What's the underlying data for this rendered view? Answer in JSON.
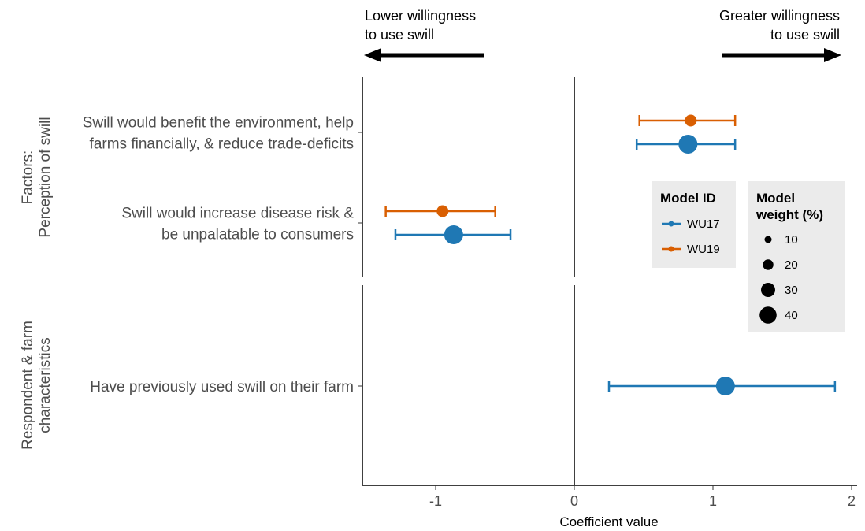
{
  "chart_data": {
    "type": "forest",
    "xlabel": "Coefficient value",
    "xlim": [
      -1.52,
      2.03
    ],
    "xticks": [
      -1,
      0,
      1,
      2
    ],
    "reference_line": 0,
    "annotations": {
      "left": [
        "Lower willingness",
        "to use swill"
      ],
      "right": [
        "Greater willingness",
        "to use swill"
      ]
    },
    "panels": [
      {
        "strip_label": [
          "Factors:",
          "Perception of swill"
        ],
        "rows": [
          {
            "label": [
              "Swill would benefit the environment, help",
              "farms financially, & reduce trade-deficits"
            ],
            "estimates": [
              {
                "model": "WU19",
                "value": 0.84,
                "low": 0.47,
                "high": 1.16,
                "weight": 20
              },
              {
                "model": "WU17",
                "value": 0.82,
                "low": 0.45,
                "high": 1.16,
                "weight": 40
              }
            ]
          },
          {
            "label": [
              "Swill would increase disease risk &",
              "be unpalatable to consumers"
            ],
            "estimates": [
              {
                "model": "WU19",
                "value": -0.95,
                "low": -1.36,
                "high": -0.57,
                "weight": 20
              },
              {
                "model": "WU17",
                "value": -0.87,
                "low": -1.29,
                "high": -0.46,
                "weight": 40
              }
            ]
          }
        ]
      },
      {
        "strip_label": [
          "Respondent & farm",
          "characteristics"
        ],
        "rows": [
          {
            "label": [
              "Have previously used swill on their farm"
            ],
            "estimates": [
              {
                "model": "WU17",
                "value": 1.09,
                "low": 0.25,
                "high": 1.88,
                "weight": 40
              }
            ]
          }
        ]
      }
    ],
    "legend_model": {
      "title": [
        "Model ID"
      ],
      "items": [
        {
          "name": "WU17",
          "color": "#1f78b4"
        },
        {
          "name": "WU19",
          "color": "#d95f02"
        }
      ]
    },
    "legend_weight": {
      "title": [
        "Model",
        "weight (%)"
      ],
      "items": [
        10,
        20,
        30,
        40
      ]
    }
  },
  "colors": {
    "WU17": "#1f78b4",
    "WU19": "#d95f02",
    "axis": "#000000",
    "legend_bg": "#ebebeb"
  }
}
